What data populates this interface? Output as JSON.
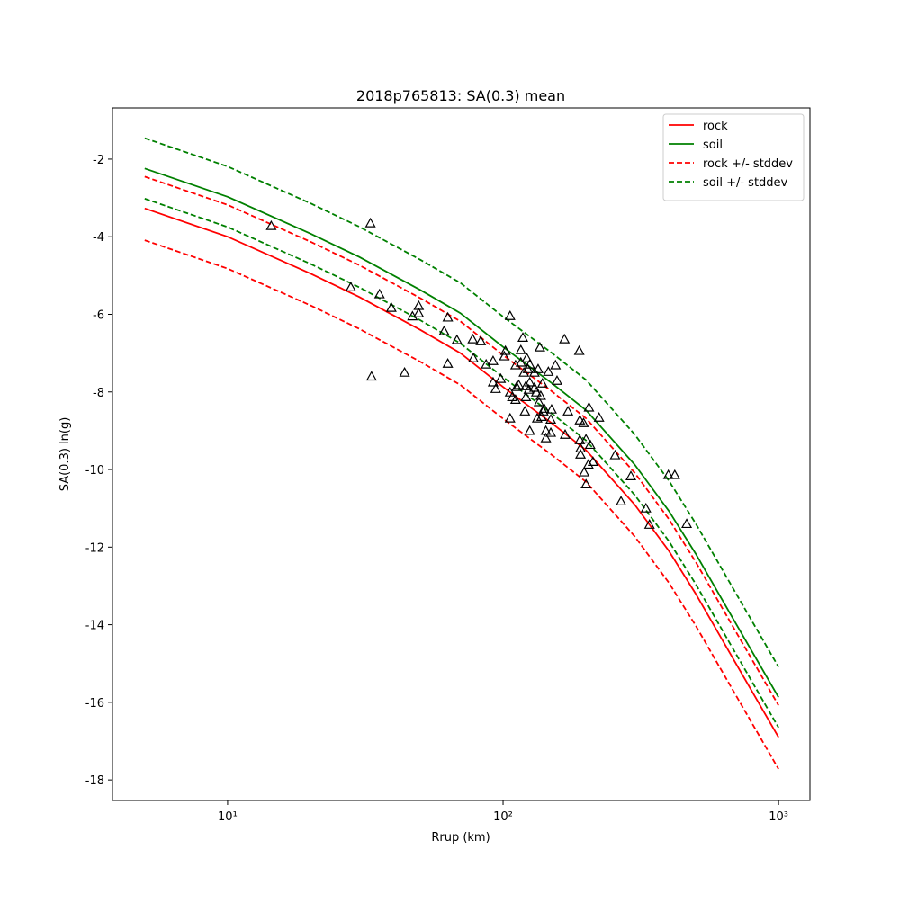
{
  "chart_data": {
    "type": "line-scatter",
    "title": "2018p765813: SA(0.3) mean",
    "x_label": "Rrup (km)",
    "y_label": "SA(0.3) ln(g)",
    "x_scale": "log",
    "xlim": [
      3.82,
      1300
    ],
    "ylim": [
      -18.53,
      -0.68
    ],
    "xticks": [
      {
        "value": 10,
        "label": "10¹"
      },
      {
        "value": 100,
        "label": "10²"
      },
      {
        "value": 1000,
        "label": "10³"
      }
    ],
    "yticks": [
      -2,
      -4,
      -6,
      -8,
      -10,
      -12,
      -14,
      -16,
      -18
    ],
    "legend": "upper right",
    "x": [
      5,
      10,
      20,
      30,
      50,
      70,
      100,
      150,
      200,
      300,
      400,
      500,
      700,
      1000
    ],
    "series": [
      {
        "name": "rock",
        "color": "#ff0000",
        "style": "solid",
        "values": [
          -3.27,
          -4.0,
          -4.95,
          -5.55,
          -6.4,
          -7.0,
          -7.87,
          -8.8,
          -9.5,
          -10.9,
          -12.1,
          -13.2,
          -15.0,
          -16.9
        ]
      },
      {
        "name": "soil",
        "color": "#008000",
        "style": "solid",
        "values": [
          -2.24,
          -2.97,
          -3.92,
          -4.52,
          -5.37,
          -5.97,
          -6.84,
          -7.77,
          -8.47,
          -9.87,
          -11.07,
          -12.17,
          -13.97,
          -15.87
        ]
      },
      {
        "name": "rock +/- stddev",
        "color": "#ff0000",
        "style": "dashed",
        "upper": [
          -2.45,
          -3.18,
          -4.13,
          -4.73,
          -5.58,
          -6.18,
          -7.05,
          -7.98,
          -8.68,
          -10.08,
          -11.28,
          -12.38,
          -14.18,
          -16.08
        ],
        "lower": [
          -4.09,
          -4.82,
          -5.77,
          -6.37,
          -7.22,
          -7.82,
          -8.69,
          -9.62,
          -10.32,
          -11.72,
          -12.92,
          -14.02,
          -15.82,
          -17.72
        ]
      },
      {
        "name": "soil +/- stddev",
        "color": "#008000",
        "style": "dashed",
        "upper": [
          -1.46,
          -2.19,
          -3.14,
          -3.74,
          -4.59,
          -5.19,
          -6.06,
          -6.99,
          -7.69,
          -9.09,
          -10.29,
          -11.39,
          -13.19,
          -15.09
        ],
        "lower": [
          -3.02,
          -3.75,
          -4.7,
          -5.3,
          -6.15,
          -6.75,
          -7.62,
          -8.55,
          -9.25,
          -10.65,
          -11.85,
          -12.95,
          -14.75,
          -16.65
        ]
      }
    ],
    "points": {
      "color": "#000000",
      "x": [
        14.4,
        33.0,
        28.0,
        35.6,
        39.3,
        33.3,
        43.9,
        46.9,
        49.4,
        49.4,
        63.0,
        61.1,
        63,
        68,
        77.6,
        83,
        78,
        86.8,
        92,
        92,
        94,
        98,
        101,
        102,
        106,
        106,
        106,
        108,
        111,
        111,
        112,
        114,
        116,
        116,
        118,
        119,
        121,
        122,
        123,
        120,
        121,
        124,
        125,
        125,
        125,
        130,
        130,
        132,
        133,
        134,
        135,
        136,
        137,
        138,
        139,
        140,
        141,
        143,
        143,
        146,
        149,
        149,
        150,
        155,
        157,
        167,
        168,
        172,
        189,
        190,
        190,
        191,
        191,
        196,
        197,
        200,
        200,
        204,
        205,
        207,
        212,
        223,
        255,
        268,
        291,
        330,
        340,
        398,
        420,
        464
      ],
      "y": [
        -3.72,
        -3.65,
        -5.3,
        -5.48,
        -5.83,
        -7.6,
        -7.5,
        -6.05,
        -5.78,
        -5.97,
        -6.08,
        -6.43,
        -7.27,
        -6.66,
        -6.64,
        -6.69,
        -7.13,
        -7.29,
        -7.2,
        -7.75,
        -7.92,
        -7.66,
        -7.08,
        -6.94,
        -6.04,
        -8.68,
        -8.01,
        -8.13,
        -7.31,
        -8.2,
        -7.87,
        -7.82,
        -6.92,
        -7.24,
        -6.6,
        -7.5,
        -8.13,
        -7.13,
        -7.41,
        -8.5,
        -7.85,
        -7.94,
        -7.29,
        -7.75,
        -9.0,
        -7.89,
        -7.5,
        -8.01,
        -8.68,
        -7.41,
        -8.26,
        -6.85,
        -8.1,
        -8.64,
        -7.78,
        -8.5,
        -8.43,
        -9.0,
        -9.19,
        -7.48,
        -8.71,
        -9.05,
        -8.45,
        -7.31,
        -7.71,
        -6.64,
        -9.1,
        -8.5,
        -6.94,
        -8.73,
        -9.24,
        -9.45,
        -9.61,
        -8.8,
        -10.07,
        -9.22,
        -10.38,
        -9.87,
        -8.4,
        -9.36,
        -9.8,
        -8.66,
        -9.63,
        -10.82,
        -10.17,
        -11.0,
        -11.42,
        -10.14,
        -10.14,
        -11.4
      ]
    }
  }
}
